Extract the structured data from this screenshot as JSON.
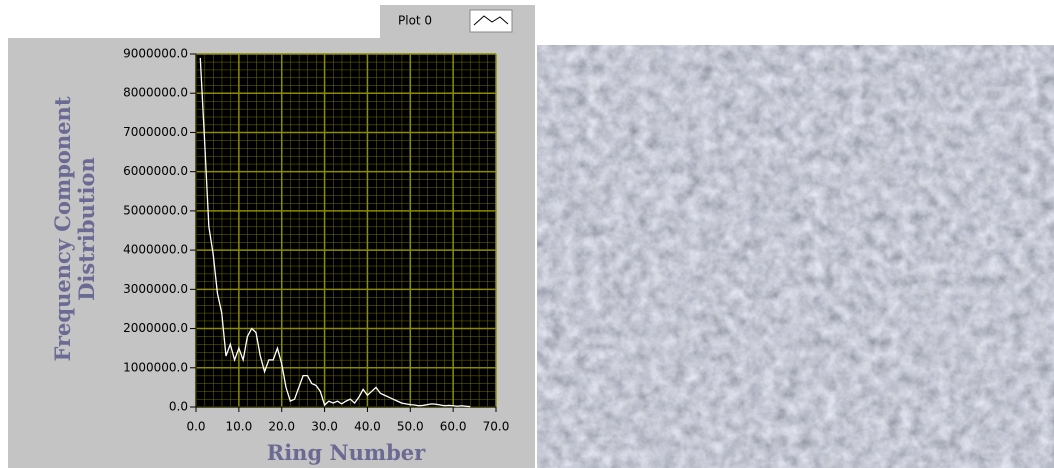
{
  "chart_data": {
    "type": "line",
    "y_label": "Frequency Component Distribution",
    "x_label": "Ring Number",
    "x": [
      1,
      2,
      3,
      4,
      5,
      6,
      7,
      8,
      9,
      10,
      11,
      12,
      13,
      14,
      15,
      16,
      17,
      18,
      19,
      20,
      21,
      22,
      23,
      24,
      25,
      26,
      27,
      28,
      29,
      30,
      31,
      32,
      33,
      34,
      35,
      36,
      37,
      38,
      39,
      40,
      41,
      42,
      43,
      44,
      45,
      46,
      47,
      48,
      49,
      50,
      51,
      52,
      53,
      54,
      55,
      56,
      57,
      58,
      59,
      60,
      61,
      62,
      63,
      64
    ],
    "series": [
      {
        "name": "Plot 0",
        "color": "#ffffff",
        "values": [
          8900000,
          6800000,
          4600000,
          3900000,
          2900000,
          2400000,
          1300000,
          1600000,
          1200000,
          1500000,
          1200000,
          1800000,
          2000000,
          1900000,
          1300000,
          900000,
          1200000,
          1200000,
          1500000,
          1100000,
          500000,
          150000,
          200000,
          500000,
          800000,
          800000,
          600000,
          550000,
          400000,
          50000,
          150000,
          100000,
          150000,
          80000,
          150000,
          200000,
          100000,
          250000,
          450000,
          300000,
          400000,
          500000,
          350000,
          300000,
          250000,
          200000,
          150000,
          100000,
          80000,
          60000,
          50000,
          30000,
          40000,
          60000,
          80000,
          70000,
          50000,
          30000,
          40000,
          30000,
          20000,
          30000,
          20000,
          10000
        ]
      }
    ],
    "xlim": [
      0,
      70
    ],
    "ylim": [
      0,
      9000000
    ],
    "xticks": [
      {
        "value": 0,
        "label": "0.0"
      },
      {
        "value": 10,
        "label": "10.0"
      },
      {
        "value": 20,
        "label": "20.0"
      },
      {
        "value": 30,
        "label": "30.0"
      },
      {
        "value": 40,
        "label": "40.0"
      },
      {
        "value": 50,
        "label": "50.0"
      },
      {
        "value": 60,
        "label": "60.0"
      },
      {
        "value": 70,
        "label": "70.0"
      }
    ],
    "yticks": [
      {
        "value": 0,
        "label": "0.0"
      },
      {
        "value": 1000000,
        "label": "1000000.0"
      },
      {
        "value": 2000000,
        "label": "2000000.0"
      },
      {
        "value": 3000000,
        "label": "3000000.0"
      },
      {
        "value": 4000000,
        "label": "4000000.0"
      },
      {
        "value": 5000000,
        "label": "5000000.0"
      },
      {
        "value": 6000000,
        "label": "6000000.0"
      },
      {
        "value": 7000000,
        "label": "7000000.0"
      },
      {
        "value": 8000000,
        "label": "8000000.0"
      },
      {
        "value": 9000000,
        "label": "9000000.0"
      }
    ],
    "grid": true,
    "plot_background": "#000000",
    "grid_color": "#8c8c00"
  }
}
